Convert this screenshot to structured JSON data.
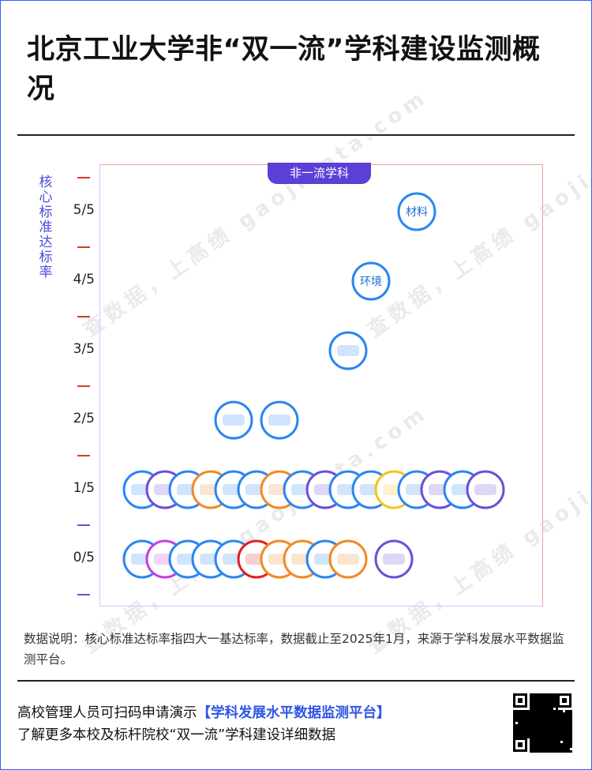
{
  "title": "北京工业大学非“双一流”学科建设监测概况",
  "y_axis_label": [
    "核",
    "心",
    "标",
    "准",
    "达",
    "标",
    "率"
  ],
  "category_badge": "非一流学科",
  "watermark": "查数据，上高绩 gaojidata.com",
  "note": "数据说明：核心标准达标率指四大一基达标率，数据截止至2025年1月，来源于学科发展水平数据监测平台。",
  "footer": {
    "line1_prefix": "高校管理人员可扫码申请演示",
    "line1_highlight": "【学科发展水平数据监测平台】",
    "line2": "了解更多本校及标杆院校“双一流”学科建设详细数据"
  },
  "colors": {
    "blue": "#2b86f0",
    "purple": "#6b4fd8",
    "orange": "#f08a24",
    "yellow": "#f5c518",
    "magenta": "#c73fe0",
    "red": "#e02020",
    "tick_red": "#d33a2c",
    "tick_purple": "#6a55d8"
  },
  "chart_data": {
    "type": "scatter",
    "y_tick_labels": [
      "0/5",
      "1/5",
      "2/5",
      "3/5",
      "4/5",
      "5/5"
    ],
    "ylim": [
      0,
      5
    ],
    "points": [
      {
        "level": 5,
        "label": "材料",
        "color": "blue",
        "order": 12
      },
      {
        "level": 4,
        "label": "环境",
        "color": "blue",
        "order": 10
      },
      {
        "level": 3,
        "label": "",
        "color": "blue",
        "order": 9
      },
      {
        "level": 2,
        "label": "",
        "color": "blue",
        "order": 4
      },
      {
        "level": 2,
        "label": "",
        "color": "blue",
        "order": 6
      },
      {
        "level": 1,
        "label": "",
        "color": "blue",
        "order": 0
      },
      {
        "level": 1,
        "label": "",
        "color": "purple",
        "order": 1
      },
      {
        "level": 1,
        "label": "",
        "color": "blue",
        "order": 2
      },
      {
        "level": 1,
        "label": "",
        "color": "orange",
        "order": 3
      },
      {
        "level": 1,
        "label": "",
        "color": "blue",
        "order": 4
      },
      {
        "level": 1,
        "label": "",
        "color": "blue",
        "order": 5
      },
      {
        "level": 1,
        "label": "",
        "color": "orange",
        "order": 6
      },
      {
        "level": 1,
        "label": "",
        "color": "blue",
        "order": 7
      },
      {
        "level": 1,
        "label": "",
        "color": "purple",
        "order": 8
      },
      {
        "level": 1,
        "label": "",
        "color": "blue",
        "order": 9
      },
      {
        "level": 1,
        "label": "",
        "color": "blue",
        "order": 10
      },
      {
        "level": 1,
        "label": "",
        "color": "yellow",
        "order": 11
      },
      {
        "level": 1,
        "label": "",
        "color": "blue",
        "order": 12
      },
      {
        "level": 1,
        "label": "",
        "color": "purple",
        "order": 13
      },
      {
        "level": 1,
        "label": "",
        "color": "blue",
        "order": 14
      },
      {
        "level": 1,
        "label": "",
        "color": "purple",
        "order": 15
      },
      {
        "level": 0,
        "label": "",
        "color": "blue",
        "order": 0
      },
      {
        "level": 0,
        "label": "",
        "color": "magenta",
        "order": 1
      },
      {
        "level": 0,
        "label": "",
        "color": "blue",
        "order": 2
      },
      {
        "level": 0,
        "label": "",
        "color": "blue",
        "order": 3
      },
      {
        "level": 0,
        "label": "",
        "color": "blue",
        "order": 4
      },
      {
        "level": 0,
        "label": "",
        "color": "red",
        "order": 5
      },
      {
        "level": 0,
        "label": "",
        "color": "orange",
        "order": 6
      },
      {
        "level": 0,
        "label": "",
        "color": "orange",
        "order": 7
      },
      {
        "level": 0,
        "label": "",
        "color": "blue",
        "order": 8
      },
      {
        "level": 0,
        "label": "",
        "color": "orange",
        "order": 9
      },
      {
        "level": 0,
        "label": "",
        "color": "purple",
        "order": 11
      }
    ]
  }
}
